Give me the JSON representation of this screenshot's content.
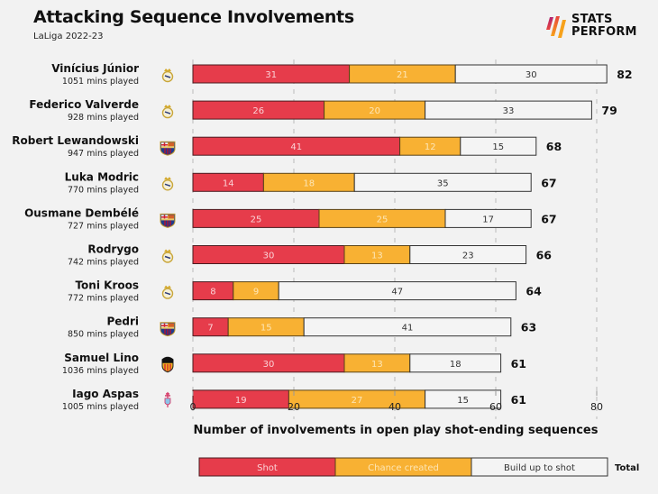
{
  "header": {
    "title": "Attacking Sequence Involvements",
    "subtitle": "LaLiga 2022-23",
    "brand_line1": "STATS",
    "brand_line2": "PERFORM"
  },
  "colors": {
    "shot": "#e63c4b",
    "chance_created": "#f8b133",
    "build_up": "#f4f4f4",
    "background": "#f2f2f2"
  },
  "chart_data": {
    "type": "bar",
    "orientation": "horizontal",
    "stacked": true,
    "title": "Attacking Sequence Involvements",
    "subtitle": "LaLiga 2022-23",
    "xlabel": "Number of involvements in open play shot-ending sequences",
    "ylabel": "",
    "xlim": [
      0,
      80
    ],
    "xticks": [
      0,
      20,
      40,
      60,
      80
    ],
    "grid": "vertical dashed",
    "legend": {
      "placement": "bottom",
      "entries": [
        "Shot",
        "Chance created",
        "Build up to shot"
      ],
      "total_label": "Total"
    },
    "categories": [
      {
        "name": "Vinícius Júnior",
        "mins": "1051 mins played",
        "club": "Real Madrid"
      },
      {
        "name": "Federico Valverde",
        "mins": "928 mins played",
        "club": "Real Madrid"
      },
      {
        "name": "Robert Lewandowski",
        "mins": "947 mins played",
        "club": "Barcelona"
      },
      {
        "name": "Luka Modric",
        "mins": "770 mins played",
        "club": "Real Madrid"
      },
      {
        "name": "Ousmane Dembélé",
        "mins": "727 mins played",
        "club": "Barcelona"
      },
      {
        "name": "Rodrygo",
        "mins": "742 mins played",
        "club": "Real Madrid"
      },
      {
        "name": "Toni Kroos",
        "mins": "772 mins played",
        "club": "Real Madrid"
      },
      {
        "name": "Pedri",
        "mins": "850 mins played",
        "club": "Barcelona"
      },
      {
        "name": "Samuel Lino",
        "mins": "1036 mins played",
        "club": "Valencia"
      },
      {
        "name": "Iago Aspas",
        "mins": "1005 mins played",
        "club": "Celta Vigo"
      }
    ],
    "series": [
      {
        "name": "Shot",
        "values": [
          31,
          26,
          41,
          14,
          25,
          30,
          8,
          7,
          30,
          19
        ]
      },
      {
        "name": "Chance created",
        "values": [
          21,
          20,
          12,
          18,
          25,
          13,
          9,
          15,
          13,
          27
        ]
      },
      {
        "name": "Build up to shot",
        "values": [
          30,
          33,
          15,
          35,
          17,
          23,
          47,
          41,
          18,
          15
        ]
      }
    ],
    "totals": [
      82,
      79,
      68,
      67,
      67,
      66,
      64,
      63,
      61,
      61
    ]
  }
}
